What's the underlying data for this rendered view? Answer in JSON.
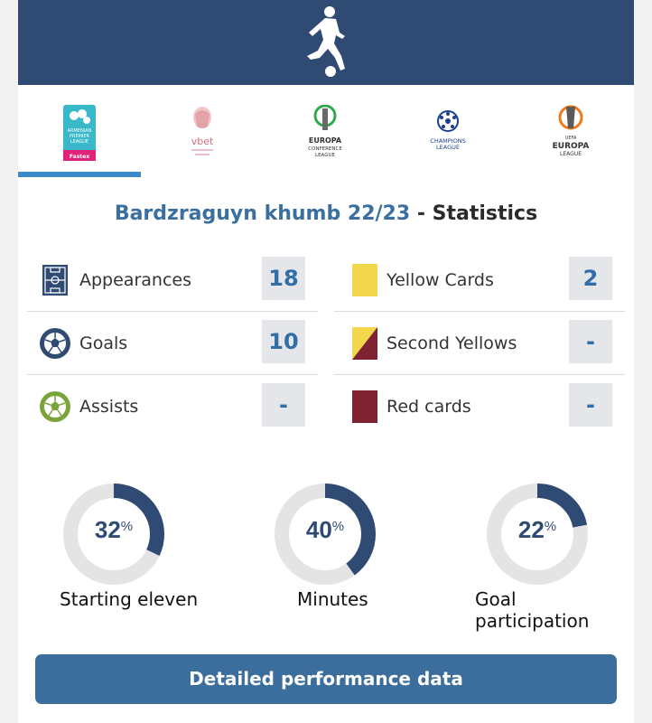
{
  "tabs": [
    {
      "name": "Armenian Premier League",
      "lines": [
        "ARMENIAN",
        "PREMIER",
        "LEAGUE"
      ],
      "badge": "Fastex",
      "active": true
    },
    {
      "name": "vbet Armenian Cup",
      "lines": [
        "vbet"
      ],
      "active": false
    },
    {
      "name": "UEFA Europa Conference League",
      "lines": [
        "EUROPA",
        "CONFERENCE",
        "LEAGUE"
      ],
      "active": false
    },
    {
      "name": "UEFA Champions League",
      "lines": [
        "CHAMPIONS",
        "LEAGUE"
      ],
      "active": false
    },
    {
      "name": "UEFA Europa League",
      "lines": [
        "UEFA",
        "EUROPA",
        "LEAGUE"
      ],
      "active": false
    }
  ],
  "heading": {
    "season": "Bardzraguyn khumb 22/23",
    "separator": " - ",
    "title": "Statistics"
  },
  "stats_left": [
    {
      "icon": "pitch-icon",
      "label": "Appearances",
      "value": "18"
    },
    {
      "icon": "ball-icon",
      "label": "Goals",
      "value": "10"
    },
    {
      "icon": "assist-ball-icon",
      "label": "Assists",
      "value": "-"
    }
  ],
  "stats_right": [
    {
      "icon": "yellow-card-icon",
      "label": "Yellow Cards",
      "value": "2"
    },
    {
      "icon": "second-yellow-icon",
      "label": "Second Yellows",
      "value": "-"
    },
    {
      "icon": "red-card-icon",
      "label": "Red cards",
      "value": "-"
    }
  ],
  "rings": [
    {
      "value": 32,
      "label": "Starting eleven",
      "display": "32",
      "symbol": "%"
    },
    {
      "value": 40,
      "label": "Minutes",
      "display": "40",
      "symbol": "%"
    },
    {
      "value": 22,
      "label": "Goal participation",
      "display": "22",
      "symbol": "%"
    }
  ],
  "cta_label": "Detailed performance data",
  "colors": {
    "banner": "#2f4a73",
    "accent": "#3c8ac9",
    "ring_fill": "#2f4a73",
    "ring_track": "#e4e4e4",
    "yellow": "#f2d64c",
    "red": "#7f2332"
  }
}
